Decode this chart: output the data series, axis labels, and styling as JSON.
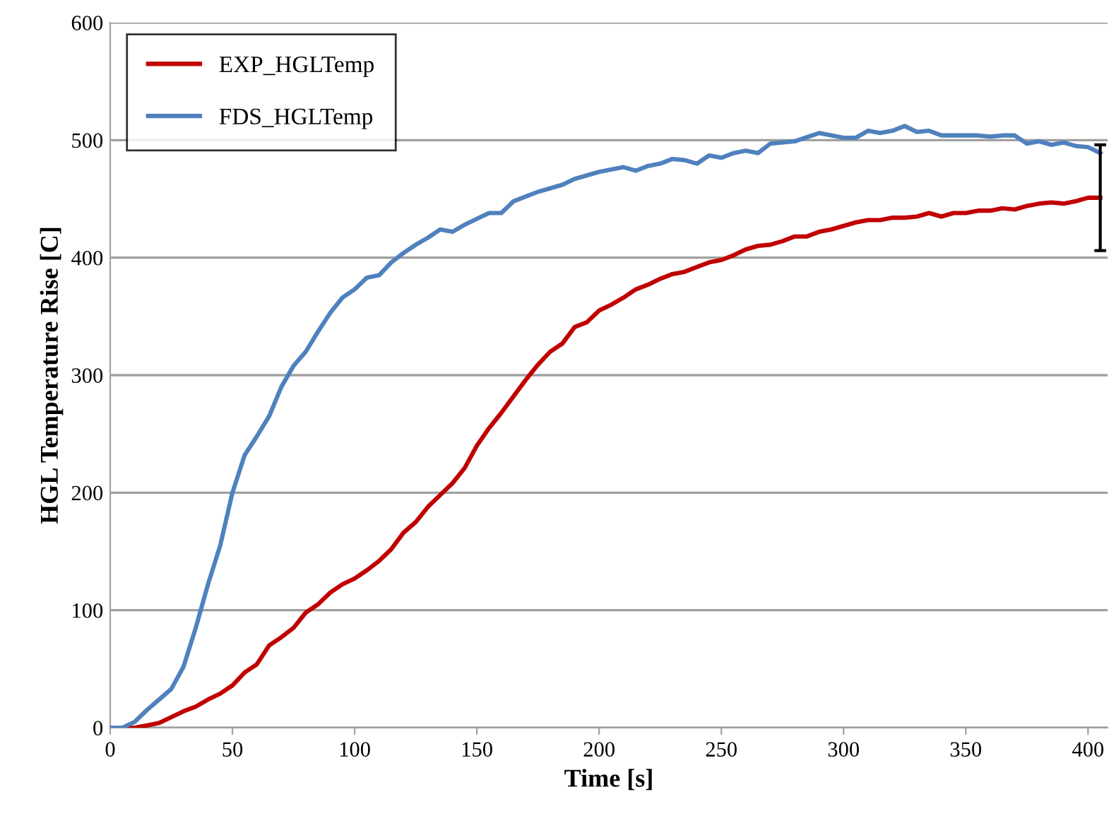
{
  "chart_data": {
    "type": "line",
    "xlabel": "Time [s]",
    "ylabel": "HGL Temperature Rise [C]",
    "xlim": [
      0,
      408
    ],
    "xticks": [
      0,
      50,
      100,
      150,
      200,
      250,
      300,
      350,
      400
    ],
    "ylim": [
      0,
      600
    ],
    "yticks": [
      0,
      100,
      200,
      300,
      400,
      500,
      600
    ],
    "grid": "y",
    "legend": "top left",
    "marker": "none",
    "line_style": "solid",
    "series": [
      {
        "name": "EXP_HGLTemp",
        "color": "#c00000",
        "x": [
          0,
          10,
          15,
          20,
          25,
          30,
          35,
          40,
          45,
          50,
          55,
          60,
          65,
          70,
          75,
          80,
          85,
          90,
          95,
          100,
          105,
          110,
          115,
          120,
          125,
          130,
          135,
          140,
          145,
          150,
          155,
          160,
          165,
          170,
          175,
          180,
          185,
          190,
          195,
          200,
          205,
          210,
          215,
          220,
          225,
          230,
          235,
          240,
          245,
          250,
          255,
          260,
          265,
          270,
          275,
          280,
          285,
          290,
          295,
          300,
          305,
          310,
          315,
          320,
          325,
          330,
          335,
          340,
          345,
          350,
          355,
          360,
          365,
          370,
          375,
          380,
          385,
          390,
          395,
          400,
          405
        ],
        "values": [
          0,
          0,
          2,
          4,
          9,
          14,
          18,
          24,
          29,
          36,
          47,
          54,
          70,
          77,
          85,
          98,
          105,
          115,
          122,
          127,
          134,
          142,
          152,
          166,
          175,
          188,
          198,
          208,
          221,
          240,
          255,
          268,
          282,
          296,
          309,
          320,
          327,
          341,
          345,
          355,
          360,
          366,
          373,
          377,
          382,
          386,
          388,
          392,
          396,
          398,
          402,
          407,
          410,
          411,
          414,
          418,
          418,
          422,
          424,
          427,
          430,
          432,
          432,
          434,
          434,
          435,
          438,
          435,
          438,
          438,
          440,
          440,
          442,
          441,
          444,
          446,
          447,
          446,
          448,
          451,
          451
        ],
        "errors": [
          null,
          null,
          null,
          null,
          null,
          null,
          null,
          null,
          null,
          null,
          null,
          null,
          null,
          null,
          null,
          null,
          null,
          null,
          null,
          null,
          null,
          null,
          null,
          null,
          null,
          null,
          null,
          null,
          null,
          null,
          null,
          null,
          null,
          null,
          null,
          null,
          null,
          null,
          null,
          null,
          null,
          null,
          null,
          null,
          null,
          null,
          null,
          null,
          null,
          null,
          null,
          null,
          null,
          null,
          null,
          null,
          null,
          null,
          null,
          null,
          null,
          null,
          null,
          null,
          null,
          null,
          null,
          null,
          null,
          null,
          null,
          null,
          null,
          null,
          null,
          null,
          null,
          null,
          null,
          null,
          45
        ]
      },
      {
        "name": "FDS_HGLTemp",
        "color": "#4f81bd",
        "x": [
          0,
          5,
          10,
          15,
          20,
          25,
          30,
          35,
          40,
          45,
          50,
          55,
          60,
          65,
          70,
          75,
          80,
          85,
          90,
          95,
          100,
          105,
          110,
          115,
          120,
          125,
          130,
          135,
          140,
          145,
          150,
          155,
          160,
          165,
          170,
          175,
          180,
          185,
          190,
          195,
          200,
          210,
          215,
          220,
          225,
          230,
          235,
          240,
          245,
          250,
          255,
          260,
          265,
          270,
          280,
          290,
          300,
          305,
          310,
          315,
          320,
          325,
          330,
          335,
          340,
          350,
          355,
          360,
          365,
          370,
          375,
          380,
          385,
          390,
          395,
          400,
          405
        ],
        "values": [
          0,
          0,
          5,
          15,
          24,
          33,
          52,
          85,
          122,
          155,
          200,
          232,
          248,
          265,
          290,
          308,
          320,
          337,
          353,
          366,
          373,
          383,
          385,
          396,
          404,
          411,
          417,
          424,
          422,
          428,
          433,
          438,
          438,
          448,
          452,
          456,
          459,
          462,
          467,
          470,
          473,
          477,
          474,
          478,
          480,
          484,
          483,
          480,
          487,
          485,
          489,
          491,
          489,
          497,
          499,
          506,
          502,
          502,
          508,
          506,
          508,
          512,
          507,
          508,
          504,
          504,
          504,
          503,
          504,
          504,
          497,
          499,
          496,
          498,
          495,
          494,
          489
        ]
      }
    ]
  }
}
